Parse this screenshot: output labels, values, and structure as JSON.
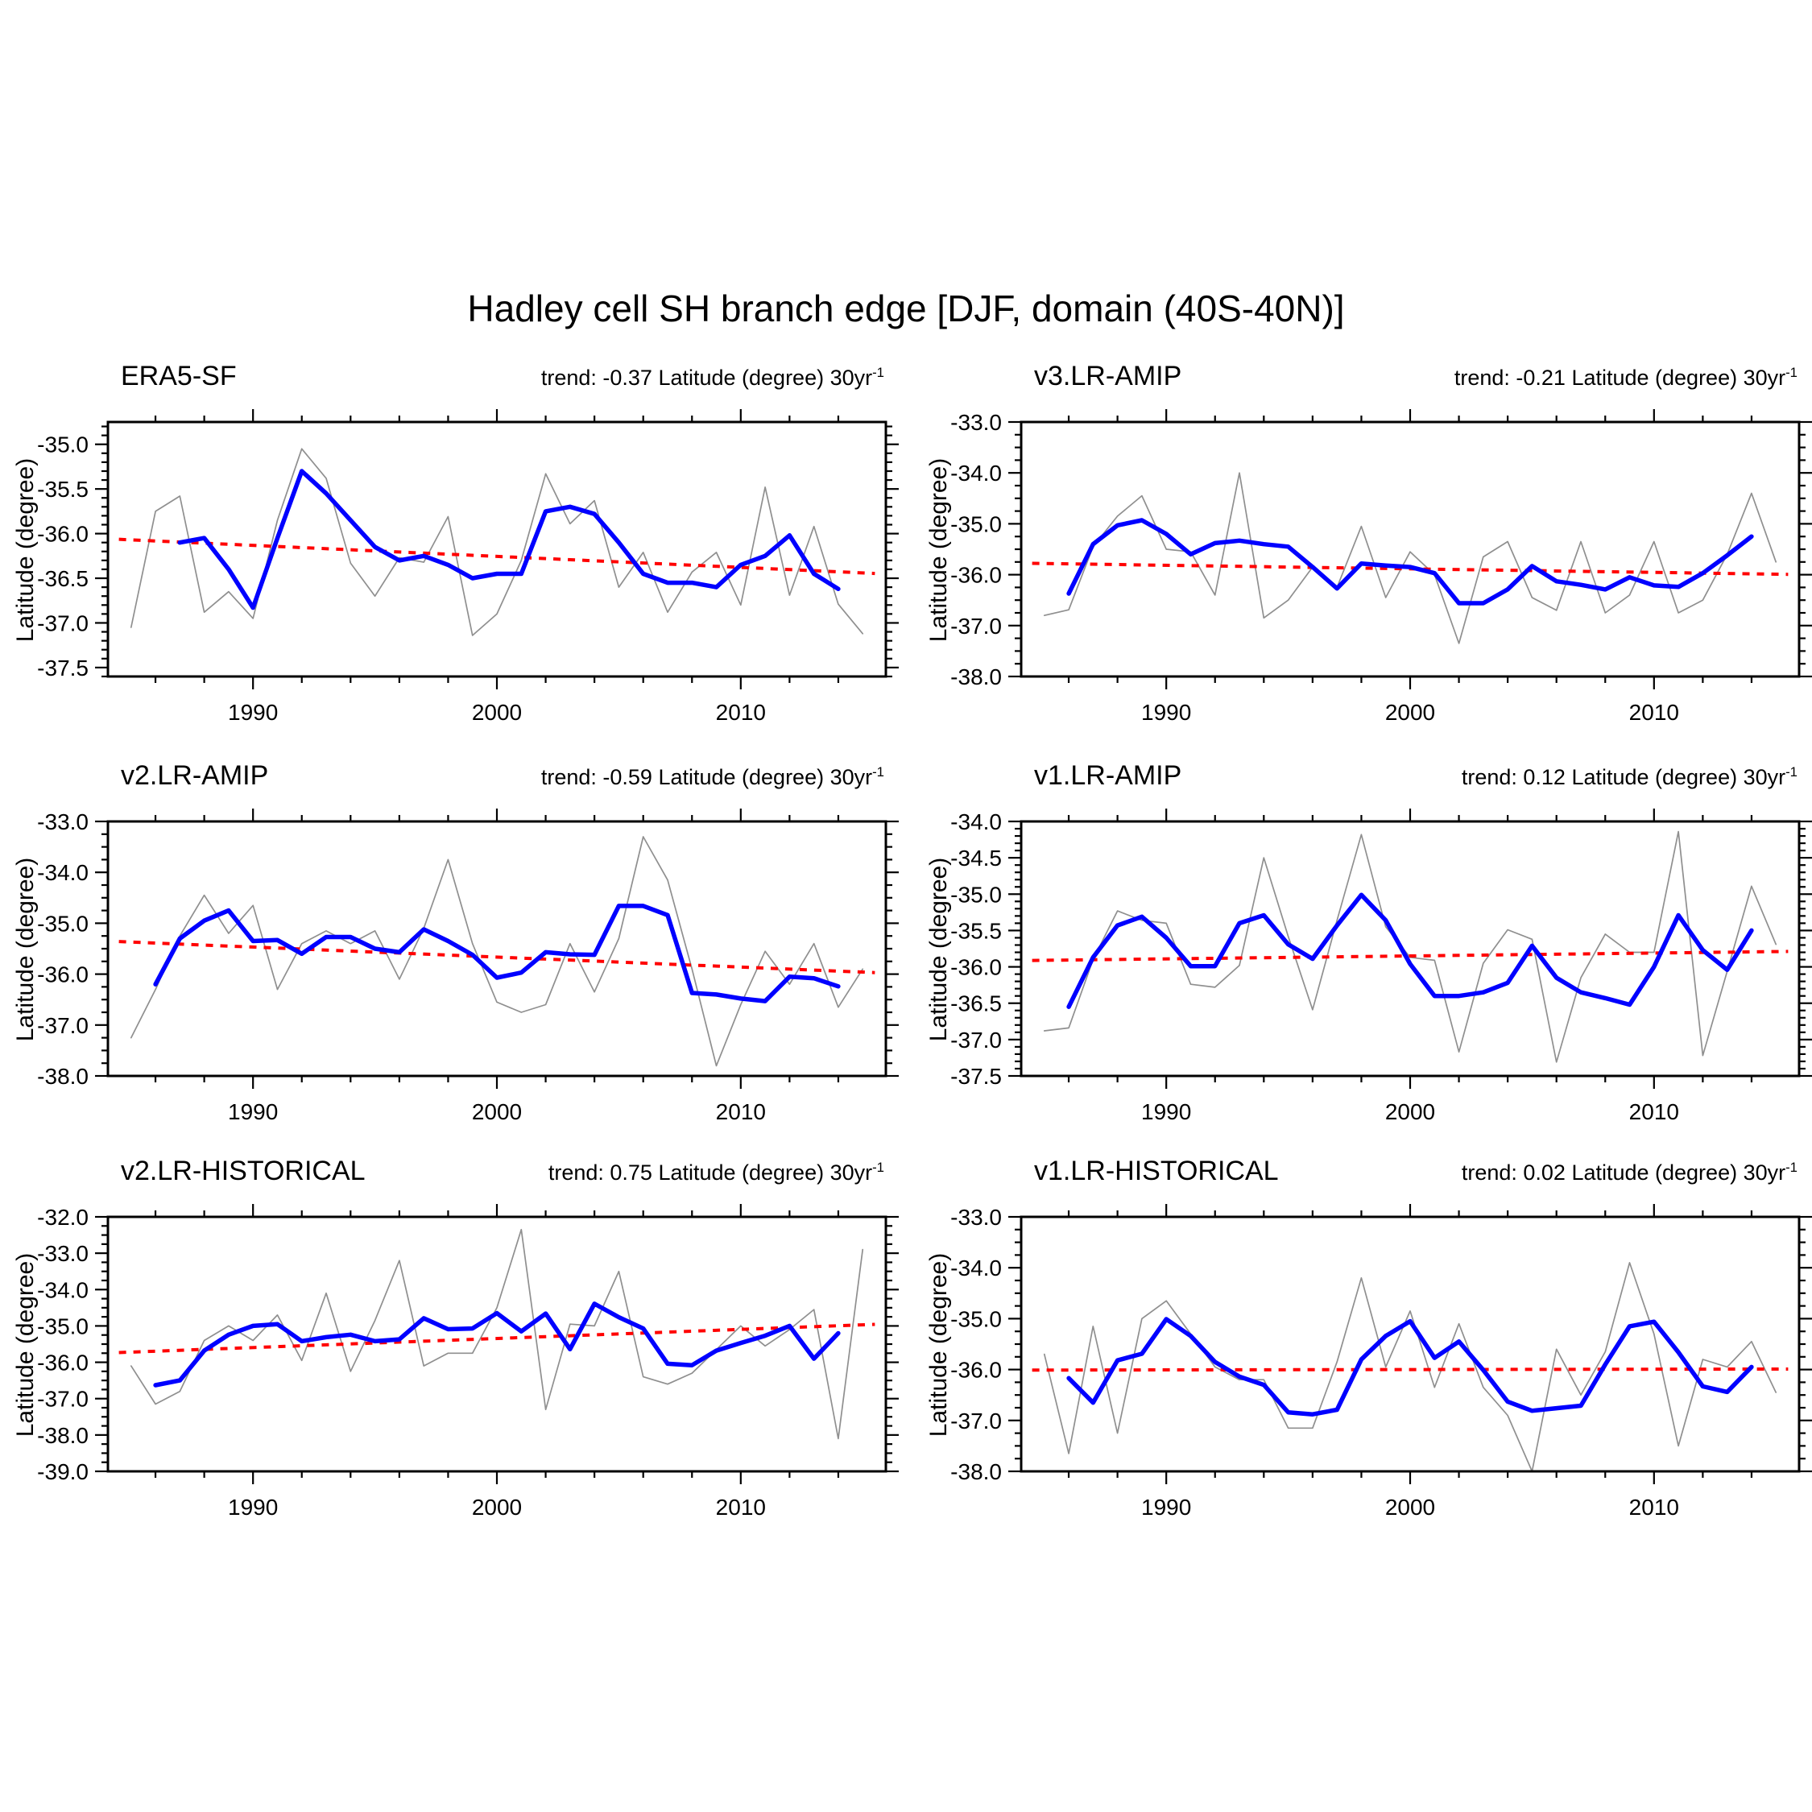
{
  "figure": {
    "title": "Hadley cell SH branch edge [DJF, domain (40S-40N)]"
  },
  "colors": {
    "annual": "#8f8f8f",
    "smoothed": "#0000ff",
    "trend": "#ff0000",
    "axis": "#000000",
    "background": "#ffffff"
  },
  "axes": {
    "xlim": [
      1984.05,
      2015.95
    ],
    "x_major_ticks": [
      1990,
      2000,
      2010
    ],
    "x_tick_labels": [
      "1990",
      "2000",
      "2010"
    ],
    "x_minor_start": 1986,
    "x_minor_step": 2,
    "x_minor_end": 2014
  },
  "chart_data": [
    {
      "type": "line",
      "title": "ERA5-SF",
      "trend_label": "trend: -0.37 Latitude (degree) 30yr",
      "trend_exponent": "-1",
      "trend_value": -0.37,
      "ylabel": "Latitude (degree)",
      "ylim": [
        -37.6,
        -34.75
      ],
      "y_major_step": 0.5,
      "y_minor_step": 0.1,
      "series": [
        {
          "name": "annual",
          "color_key": "annual",
          "start_year": 1985,
          "values": [
            -37.05,
            -35.75,
            -35.58,
            -36.88,
            -36.65,
            -36.95,
            -35.85,
            -35.05,
            -35.38,
            -36.33,
            -36.7,
            -36.27,
            -36.32,
            -35.81,
            -37.14,
            -36.9,
            -36.3,
            -35.33,
            -35.89,
            -35.63,
            -36.6,
            -36.21,
            -36.88,
            -36.43,
            -36.21,
            -36.8,
            -35.48,
            -36.69,
            -35.92,
            -36.79,
            -37.12
          ]
        },
        {
          "name": "smoothed",
          "color_key": "smoothed",
          "start_year": 1987,
          "values": [
            -36.1,
            -36.05,
            -36.4,
            -36.83,
            -36.05,
            -35.3,
            -35.55,
            -35.85,
            -36.15,
            -36.3,
            -36.25,
            -36.35,
            -36.5,
            -36.45,
            -36.45,
            -35.75,
            -35.7,
            -35.78,
            -36.1,
            -36.45,
            -36.55,
            -36.55,
            -36.6,
            -36.35,
            -36.25,
            -36.02,
            -36.45,
            -36.62
          ]
        }
      ],
      "trend_line": {
        "x": [
          1985,
          2015
        ],
        "y": [
          -36.07,
          -36.44
        ]
      }
    },
    {
      "type": "line",
      "title": "v3.LR-AMIP",
      "trend_label": "trend: -0.21 Latitude (degree) 30yr",
      "trend_exponent": "-1",
      "trend_value": -0.21,
      "ylabel": "Latitude (degree)",
      "ylim": [
        -38.0,
        -33.0
      ],
      "y_major_step": 1.0,
      "y_minor_step": 0.25,
      "series": [
        {
          "name": "annual",
          "color_key": "annual",
          "start_year": 1985,
          "values": [
            -36.8,
            -36.69,
            -35.45,
            -34.85,
            -34.45,
            -35.5,
            -35.55,
            -36.4,
            -34.0,
            -36.85,
            -36.5,
            -35.85,
            -36.25,
            -35.05,
            -36.45,
            -35.55,
            -36.0,
            -37.35,
            -35.65,
            -35.35,
            -36.45,
            -36.7,
            -35.35,
            -36.75,
            -36.4,
            -35.35,
            -36.75,
            -36.5,
            -35.6,
            -34.4,
            -35.75
          ]
        },
        {
          "name": "smoothed",
          "color_key": "smoothed",
          "start_year": 1986,
          "values": [
            -36.37,
            -35.4,
            -35.03,
            -34.93,
            -35.2,
            -35.6,
            -35.38,
            -35.33,
            -35.4,
            -35.45,
            -35.85,
            -36.27,
            -35.78,
            -35.82,
            -35.85,
            -35.97,
            -36.56,
            -36.56,
            -36.29,
            -35.83,
            -36.13,
            -36.2,
            -36.29,
            -36.05,
            -36.21,
            -36.24,
            -35.97,
            -35.62,
            -35.25
          ]
        }
      ],
      "trend_line": {
        "x": [
          1985,
          2015
        ],
        "y": [
          -35.78,
          -35.99
        ]
      }
    },
    {
      "type": "line",
      "title": "v2.LR-AMIP",
      "trend_label": "trend: -0.59 Latitude (degree) 30yr",
      "trend_exponent": "-1",
      "trend_value": -0.59,
      "ylabel": "Latitude (degree)",
      "ylim": [
        -38.0,
        -33.0
      ],
      "y_major_step": 1.0,
      "y_minor_step": 0.25,
      "series": [
        {
          "name": "annual",
          "color_key": "annual",
          "start_year": 1985,
          "values": [
            -37.25,
            -36.3,
            -35.25,
            -34.45,
            -35.2,
            -34.65,
            -36.3,
            -35.4,
            -35.15,
            -35.4,
            -35.15,
            -36.1,
            -35.1,
            -33.75,
            -35.4,
            -36.55,
            -36.75,
            -36.6,
            -35.4,
            -36.35,
            -35.3,
            -33.3,
            -34.15,
            -35.9,
            -37.8,
            -36.6,
            -35.55,
            -36.2,
            -35.4,
            -36.65,
            -35.9
          ]
        },
        {
          "name": "smoothed",
          "color_key": "smoothed",
          "start_year": 1986,
          "values": [
            -36.2,
            -35.3,
            -34.95,
            -34.75,
            -35.35,
            -35.33,
            -35.6,
            -35.27,
            -35.27,
            -35.5,
            -35.57,
            -35.12,
            -35.35,
            -35.62,
            -36.07,
            -35.97,
            -35.57,
            -35.61,
            -35.62,
            -34.66,
            -34.66,
            -34.84,
            -36.37,
            -36.4,
            -36.48,
            -36.53,
            -36.05,
            -36.08,
            -36.24
          ]
        }
      ],
      "trend_line": {
        "x": [
          1985,
          2015
        ],
        "y": [
          -35.37,
          -35.96
        ]
      }
    },
    {
      "type": "line",
      "title": "v1.LR-AMIP",
      "trend_label": "trend: 0.12 Latitude (degree) 30yr",
      "trend_exponent": "-1",
      "trend_value": 0.12,
      "ylabel": "Latitude (degree)",
      "ylim": [
        -37.5,
        -34.0
      ],
      "y_major_step": 0.5,
      "y_minor_step": 0.1,
      "series": [
        {
          "name": "annual",
          "color_key": "annual",
          "start_year": 1985,
          "values": [
            -36.88,
            -36.84,
            -35.9,
            -35.23,
            -35.36,
            -35.4,
            -36.24,
            -36.28,
            -35.98,
            -34.5,
            -35.58,
            -36.59,
            -35.36,
            -34.18,
            -35.45,
            -35.87,
            -35.91,
            -37.17,
            -35.95,
            -35.49,
            -35.62,
            -37.31,
            -36.15,
            -35.55,
            -35.8,
            -35.8,
            -34.14,
            -37.22,
            -36.06,
            -34.89,
            -35.69
          ]
        },
        {
          "name": "smoothed",
          "color_key": "smoothed",
          "start_year": 1986,
          "values": [
            -36.55,
            -35.87,
            -35.43,
            -35.31,
            -35.6,
            -35.99,
            -35.99,
            -35.4,
            -35.29,
            -35.69,
            -35.89,
            -35.43,
            -35.01,
            -35.36,
            -35.96,
            -36.4,
            -36.4,
            -36.35,
            -36.22,
            -35.71,
            -36.15,
            -36.35,
            -36.43,
            -36.52,
            -36.0,
            -35.29,
            -35.77,
            -36.04,
            -35.5
          ]
        }
      ],
      "trend_line": {
        "x": [
          1985,
          2015
        ],
        "y": [
          -35.91,
          -35.79
        ]
      }
    },
    {
      "type": "line",
      "title": "v2.LR-HISTORICAL",
      "trend_label": "trend: 0.75 Latitude (degree) 30yr",
      "trend_exponent": "-1",
      "trend_value": 0.75,
      "ylabel": "Latitude (degree)",
      "ylim": [
        -39.0,
        -32.0
      ],
      "y_major_step": 1.0,
      "y_minor_step": 0.25,
      "series": [
        {
          "name": "annual",
          "color_key": "annual",
          "start_year": 1985,
          "values": [
            -36.1,
            -37.15,
            -36.8,
            -35.4,
            -35.0,
            -35.4,
            -34.7,
            -35.95,
            -34.1,
            -36.25,
            -34.85,
            -33.2,
            -36.1,
            -35.75,
            -35.75,
            -34.5,
            -32.35,
            -37.3,
            -34.95,
            -35.0,
            -33.5,
            -36.4,
            -36.6,
            -36.3,
            -35.65,
            -35.0,
            -35.55,
            -35.1,
            -34.55,
            -38.1,
            -32.9
          ]
        },
        {
          "name": "smoothed",
          "color_key": "smoothed",
          "start_year": 1986,
          "values": [
            -36.63,
            -36.5,
            -35.68,
            -35.24,
            -35.0,
            -34.95,
            -35.42,
            -35.31,
            -35.24,
            -35.42,
            -35.37,
            -34.79,
            -35.09,
            -35.07,
            -34.65,
            -35.15,
            -34.66,
            -35.64,
            -34.39,
            -34.76,
            -35.07,
            -36.04,
            -36.08,
            -35.68,
            -35.47,
            -35.27,
            -35.0,
            -35.9,
            -35.2
          ]
        }
      ],
      "trend_line": {
        "x": [
          1985,
          2015
        ],
        "y": [
          -35.72,
          -34.97
        ]
      }
    },
    {
      "type": "line",
      "title": "v1.LR-HISTORICAL",
      "trend_label": "trend: 0.02 Latitude (degree) 30yr",
      "trend_exponent": "-1",
      "trend_value": 0.02,
      "ylabel": "Latitude (degree)",
      "ylim": [
        -38.0,
        -33.0
      ],
      "y_major_step": 1.0,
      "y_minor_step": 0.25,
      "series": [
        {
          "name": "annual",
          "color_key": "annual",
          "start_year": 1985,
          "values": [
            -35.7,
            -37.65,
            -35.15,
            -37.25,
            -35.0,
            -34.65,
            -35.3,
            -35.95,
            -36.2,
            -36.2,
            -37.15,
            -37.15,
            -35.85,
            -34.2,
            -35.95,
            -34.85,
            -36.35,
            -35.1,
            -36.35,
            -36.9,
            -38.0,
            -35.6,
            -36.5,
            -35.65,
            -33.9,
            -35.3,
            -37.5,
            -35.8,
            -35.95,
            -35.45,
            -36.45
          ]
        },
        {
          "name": "smoothed",
          "color_key": "smoothed",
          "start_year": 1986,
          "values": [
            -36.17,
            -36.65,
            -35.82,
            -35.69,
            -35.01,
            -35.34,
            -35.85,
            -36.14,
            -36.3,
            -36.84,
            -36.88,
            -36.79,
            -35.8,
            -35.34,
            -35.05,
            -35.77,
            -35.45,
            -36.01,
            -36.63,
            -36.81,
            -36.76,
            -36.71,
            -35.9,
            -35.15,
            -35.06,
            -35.66,
            -36.33,
            -36.44,
            -35.95
          ]
        }
      ],
      "trend_line": {
        "x": [
          1985,
          2015
        ],
        "y": [
          -36.01,
          -35.99
        ]
      }
    }
  ]
}
